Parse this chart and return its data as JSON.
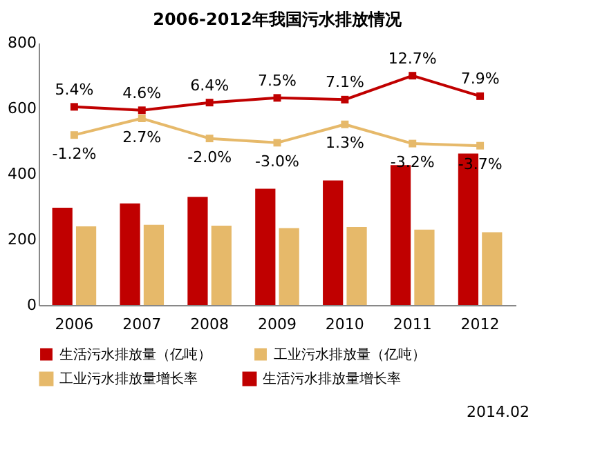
{
  "chart_data": {
    "type": "bar",
    "title": "2006-2012年我国污水排放情况",
    "categories": [
      "2006",
      "2007",
      "2008",
      "2009",
      "2010",
      "2011",
      "2012"
    ],
    "series": [
      {
        "name": "生活污水排放量（亿吨）",
        "type": "bar",
        "color": "#c00000",
        "values": [
          297,
          310,
          330,
          355,
          380,
          427,
          462
        ]
      },
      {
        "name": "工业污水排放量（亿吨）",
        "type": "bar",
        "color": "#e6b96a",
        "values": [
          240,
          245,
          242,
          235,
          238,
          230,
          222
        ]
      },
      {
        "name": "工业污水排放量增长率",
        "type": "line",
        "axis": "y2",
        "color": "#e6b96a",
        "values": [
          -1.2,
          2.7,
          -2.0,
          -3.0,
          1.3,
          -3.2,
          -3.7
        ],
        "value_labels": [
          "-1.2%",
          "2.7%",
          "-2.0%",
          "-3.0%",
          "1.3%",
          "-3.2%",
          "-3.7%"
        ]
      },
      {
        "name": "生活污水排放量增长率",
        "type": "line",
        "axis": "y2",
        "color": "#c00000",
        "values": [
          5.4,
          4.6,
          6.4,
          7.5,
          7.1,
          12.7,
          7.9
        ],
        "value_labels": [
          "5.4%",
          "4.6%",
          "6.4%",
          "7.5%",
          "7.1%",
          "12.7%",
          "7.9%"
        ]
      }
    ],
    "ylim": [
      0,
      800
    ],
    "yticks": [
      0,
      200,
      400,
      600,
      800
    ],
    "y2lim": [
      -41,
      20.4
    ],
    "grid": false,
    "legend": "bottom",
    "marker": "square",
    "line_style": "solid",
    "annotations": [
      "2014.02"
    ]
  }
}
